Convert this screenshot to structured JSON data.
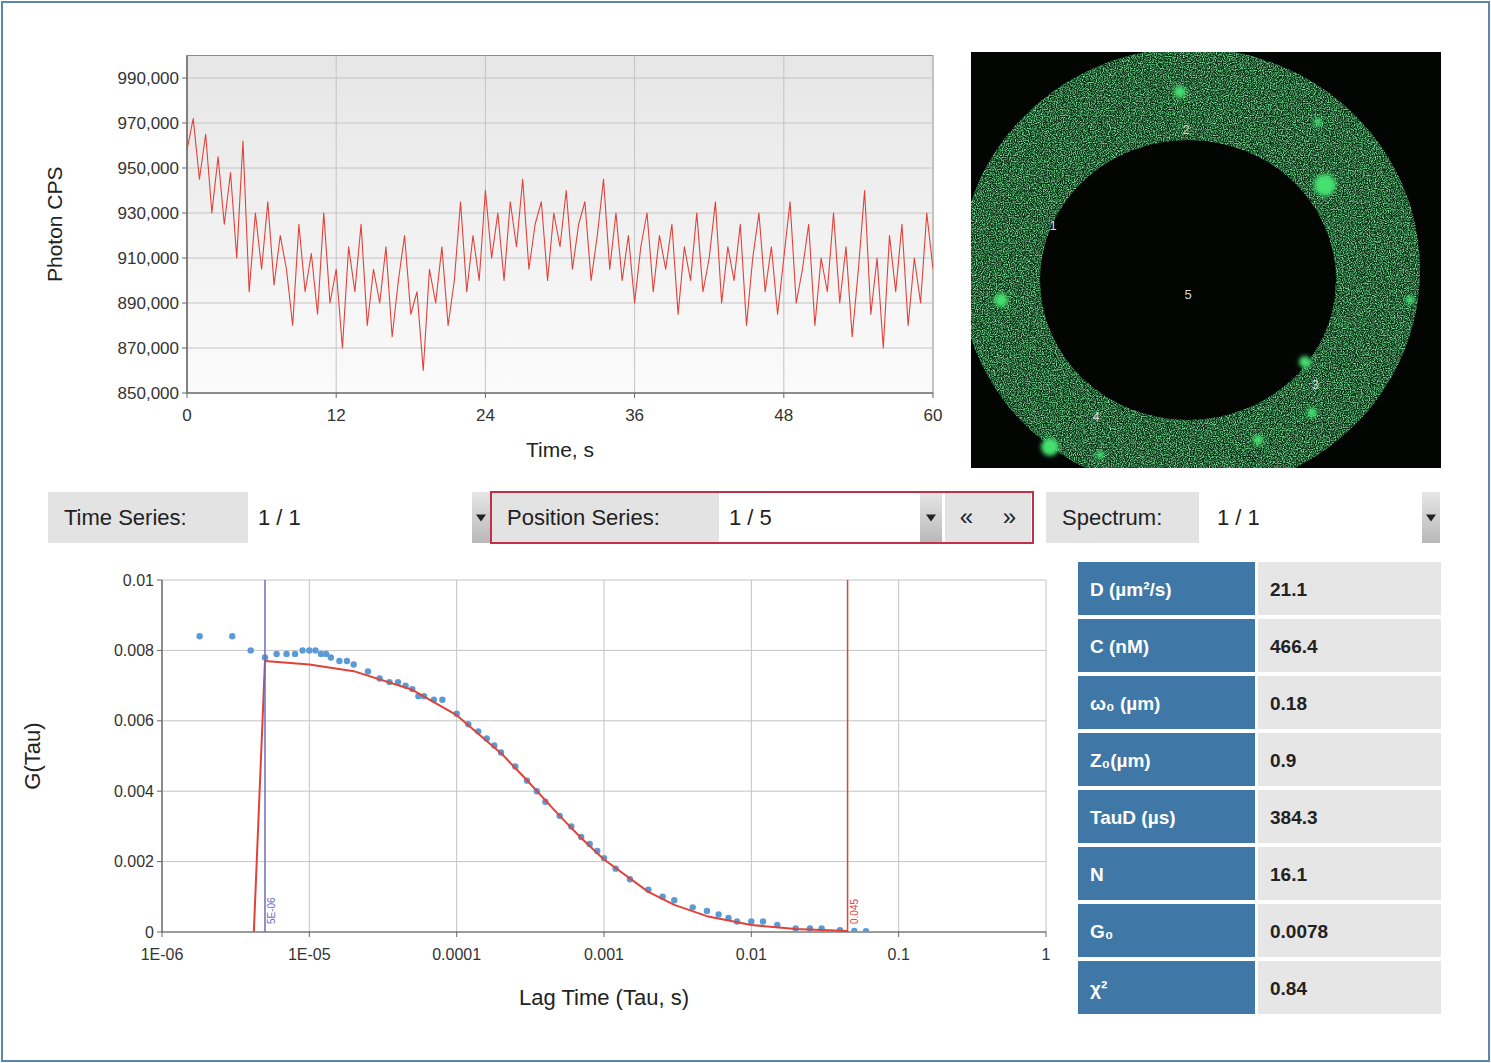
{
  "chart_data": [
    {
      "type": "line",
      "x_label": "Time, s",
      "y_label": "Photon CPS",
      "color": "#e0423a",
      "grid": true,
      "xlim": [
        0,
        60
      ],
      "xticks": [
        0,
        12,
        24,
        36,
        48,
        60
      ],
      "ylim": [
        850000,
        1000000
      ],
      "yticks": [
        {
          "value": 850000,
          "label": "850,000"
        },
        {
          "value": 870000,
          "label": "870,000"
        },
        {
          "value": 890000,
          "label": "890,000"
        },
        {
          "value": 910000,
          "label": "910,000"
        },
        {
          "value": 930000,
          "label": "930,000"
        },
        {
          "value": 950000,
          "label": "950,000"
        },
        {
          "value": 970000,
          "label": "970,000"
        },
        {
          "value": 990000,
          "label": "990,000"
        }
      ],
      "x": [
        0,
        0.5,
        1,
        1.5,
        2,
        2.5,
        3,
        3.5,
        4,
        4.5,
        5,
        5.5,
        6,
        6.5,
        7,
        7.5,
        8,
        8.5,
        9,
        9.5,
        10,
        10.5,
        11,
        11.5,
        12,
        12.5,
        13,
        13.5,
        14,
        14.5,
        15,
        15.5,
        16,
        16.5,
        17,
        17.5,
        18,
        18.5,
        19,
        19.5,
        20,
        20.5,
        21,
        21.5,
        22,
        22.5,
        23,
        23.5,
        24,
        24.5,
        25,
        25.5,
        26,
        26.5,
        27,
        27.5,
        28,
        28.5,
        29,
        29.5,
        30,
        30.5,
        31,
        31.5,
        32,
        32.5,
        33,
        33.5,
        34,
        34.5,
        35,
        35.5,
        36,
        36.5,
        37,
        37.5,
        38,
        38.5,
        39,
        39.5,
        40,
        40.5,
        41,
        41.5,
        42,
        42.5,
        43,
        43.5,
        44,
        44.5,
        45,
        45.5,
        46,
        46.5,
        47,
        47.5,
        48,
        48.5,
        49,
        49.5,
        50,
        50.5,
        51,
        51.5,
        52,
        52.5,
        53,
        53.5,
        54,
        54.5,
        55,
        55.5,
        56,
        56.5,
        57,
        57.5,
        58,
        58.5,
        59,
        59.5,
        60
      ],
      "values": [
        958000,
        972000,
        945000,
        965000,
        930000,
        955000,
        925000,
        948000,
        910000,
        962000,
        895000,
        930000,
        905000,
        935000,
        898000,
        920000,
        905000,
        880000,
        925000,
        895000,
        912000,
        885000,
        930000,
        890000,
        905000,
        870000,
        915000,
        895000,
        925000,
        880000,
        905000,
        890000,
        915000,
        875000,
        900000,
        920000,
        885000,
        895000,
        860000,
        905000,
        890000,
        915000,
        880000,
        900000,
        935000,
        895000,
        920000,
        900000,
        940000,
        910000,
        930000,
        900000,
        935000,
        915000,
        945000,
        905000,
        925000,
        935000,
        900000,
        930000,
        915000,
        940000,
        905000,
        925000,
        935000,
        900000,
        920000,
        945000,
        905000,
        930000,
        900000,
        920000,
        890000,
        915000,
        930000,
        895000,
        920000,
        905000,
        925000,
        885000,
        915000,
        900000,
        930000,
        895000,
        910000,
        935000,
        890000,
        915000,
        900000,
        925000,
        880000,
        910000,
        930000,
        895000,
        915000,
        885000,
        910000,
        935000,
        890000,
        905000,
        925000,
        880000,
        910000,
        895000,
        930000,
        890000,
        915000,
        875000,
        905000,
        940000,
        885000,
        910000,
        870000,
        920000,
        895000,
        925000,
        880000,
        910000,
        890000,
        930000,
        905000
      ]
    },
    {
      "type": "scatter",
      "x_label": "Lag Time (Tau, s)",
      "y_label": "G(Tau)",
      "log": "x",
      "grid": true,
      "xlim": [
        1e-06,
        1
      ],
      "xticks": [
        {
          "value": 1e-06,
          "label": "1E-06"
        },
        {
          "value": 1e-05,
          "label": "1E-05"
        },
        0.0001,
        0.001,
        0.01,
        0.1,
        1
      ],
      "ylim": [
        0,
        0.01
      ],
      "yticks": [
        0,
        0.002,
        0.004,
        0.006,
        0.008,
        0.01
      ],
      "series": [
        {
          "type": "scatter",
          "marker": "circle",
          "color": "#5b9bd5",
          "x": [
            1.8e-06,
            3e-06,
            4e-06,
            5e-06,
            6e-06,
            7e-06,
            8e-06,
            9e-06,
            1e-05,
            1.1e-05,
            1.2e-05,
            1.3e-05,
            1.4e-05,
            1.6e-05,
            1.8e-05,
            2e-05,
            2.5e-05,
            3e-05,
            3.5e-05,
            4e-05,
            4.5e-05,
            5e-05,
            5.5e-05,
            6e-05,
            7e-05,
            8e-05,
            0.0001,
            0.00012,
            0.00014,
            0.00016,
            0.00018,
            0.0002,
            0.00025,
            0.0003,
            0.00035,
            0.0004,
            0.0005,
            0.0006,
            0.0007,
            0.0008,
            0.0009,
            0.001,
            0.0012,
            0.0015,
            0.002,
            0.0025,
            0.003,
            0.004,
            0.005,
            0.006,
            0.007,
            0.008,
            0.01,
            0.012,
            0.015,
            0.02,
            0.025,
            0.03,
            0.04,
            0.05,
            0.06
          ],
          "values": [
            0.0084,
            0.0084,
            0.008,
            0.0078,
            0.0079,
            0.0079,
            0.0079,
            0.008,
            0.008,
            0.008,
            0.0079,
            0.0079,
            0.0078,
            0.0077,
            0.0077,
            0.0076,
            0.0074,
            0.0072,
            0.0071,
            0.0071,
            0.007,
            0.0069,
            0.0067,
            0.0067,
            0.0066,
            0.0066,
            0.0062,
            0.0059,
            0.0057,
            0.0055,
            0.0053,
            0.0051,
            0.0047,
            0.0043,
            0.004,
            0.0037,
            0.0033,
            0.003,
            0.0027,
            0.0025,
            0.0023,
            0.0021,
            0.0018,
            0.0015,
            0.0012,
            0.001,
            0.0009,
            0.0007,
            0.0006,
            0.0005,
            0.0004,
            0.0003,
            0.0003,
            0.0003,
            0.0002,
            0.0001,
            0.0001,
            0.0001,
            5e-05,
            3e-05,
            2e-05
          ]
        },
        {
          "type": "line",
          "color": "#e0423a",
          "x": [
            4.2e-06,
            5e-06,
            1e-05,
            2e-05,
            5e-05,
            0.0001,
            0.0002,
            0.0003,
            0.0005,
            0.0007,
            0.001,
            0.002,
            0.003,
            0.005,
            0.01,
            0.02,
            0.045
          ],
          "values": [
            0,
            0.0077,
            0.0076,
            0.00741,
            0.00688,
            0.00616,
            0.00508,
            0.00431,
            0.0033,
            0.00267,
            0.00206,
            0.00114,
            0.00077,
            0.00045,
            0.0002,
            8.4e-05,
            2.8e-05
          ]
        }
      ],
      "annotations": [
        {
          "x": 5e-06,
          "label": "5E-06",
          "color": "#6c6cc4"
        },
        {
          "x": 0.045,
          "label": "0.045",
          "color": "#e0423a"
        }
      ]
    }
  ],
  "image": {
    "roi_labels": [
      "1",
      "2",
      "3",
      "4",
      "5"
    ]
  },
  "controls": [
    {
      "label": "Time Series:",
      "value": "1 / 1",
      "active": false
    },
    {
      "label": "Position Series:",
      "value": "1 / 5",
      "active": true,
      "buttons": [
        "«",
        "»"
      ]
    },
    {
      "label": "Spectrum:",
      "value": "1 / 1",
      "active": false
    }
  ],
  "results": [
    {
      "label": "D (µm²/s)",
      "value": 21.1
    },
    {
      "label": "C (nM)",
      "value": 466.4
    },
    {
      "label": "ω₀ (µm)",
      "value": 0.18
    },
    {
      "label": "Z₀(µm)",
      "value": 0.9
    },
    {
      "label": "TauD (µs)",
      "value": 384.3
    },
    {
      "label": "N",
      "value": 16.1
    },
    {
      "label": "G₀",
      "value": 0.0078
    },
    {
      "label": "χ²",
      "value": 0.84
    }
  ]
}
